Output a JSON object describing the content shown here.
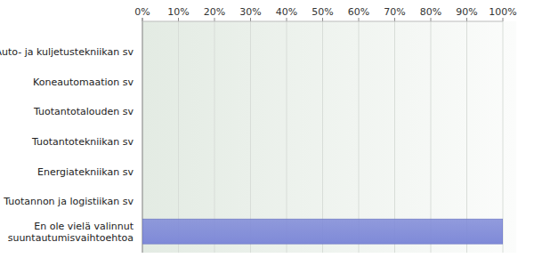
{
  "chart_data": {
    "type": "bar",
    "orientation": "horizontal",
    "categories": [
      "Auto- ja kuljetustekniikan sv",
      "Koneautomaation sv",
      "Tuotantotalouden sv",
      "Tuotantotekniikan sv",
      "Energiatekniikan sv",
      "Tuotannon ja logistiikan sv",
      "En ole vielä valinnut suuntautumisvaihtoehtoa"
    ],
    "values": [
      0,
      0,
      0,
      0,
      0,
      0,
      100
    ],
    "color": "#7f8ad8",
    "xlim": [
      0,
      100
    ],
    "xticks": [
      {
        "value": 0,
        "label": "0%"
      },
      {
        "value": 10,
        "label": "10%"
      },
      {
        "value": 20,
        "label": "20%"
      },
      {
        "value": 30,
        "label": "30%"
      },
      {
        "value": 40,
        "label": "40%"
      },
      {
        "value": 50,
        "label": "50%"
      },
      {
        "value": 60,
        "label": "60%"
      },
      {
        "value": 70,
        "label": "70%"
      },
      {
        "value": 80,
        "label": "80%"
      },
      {
        "value": 90,
        "label": "90%"
      },
      {
        "value": 100,
        "label": "100%"
      }
    ],
    "grid": true
  }
}
